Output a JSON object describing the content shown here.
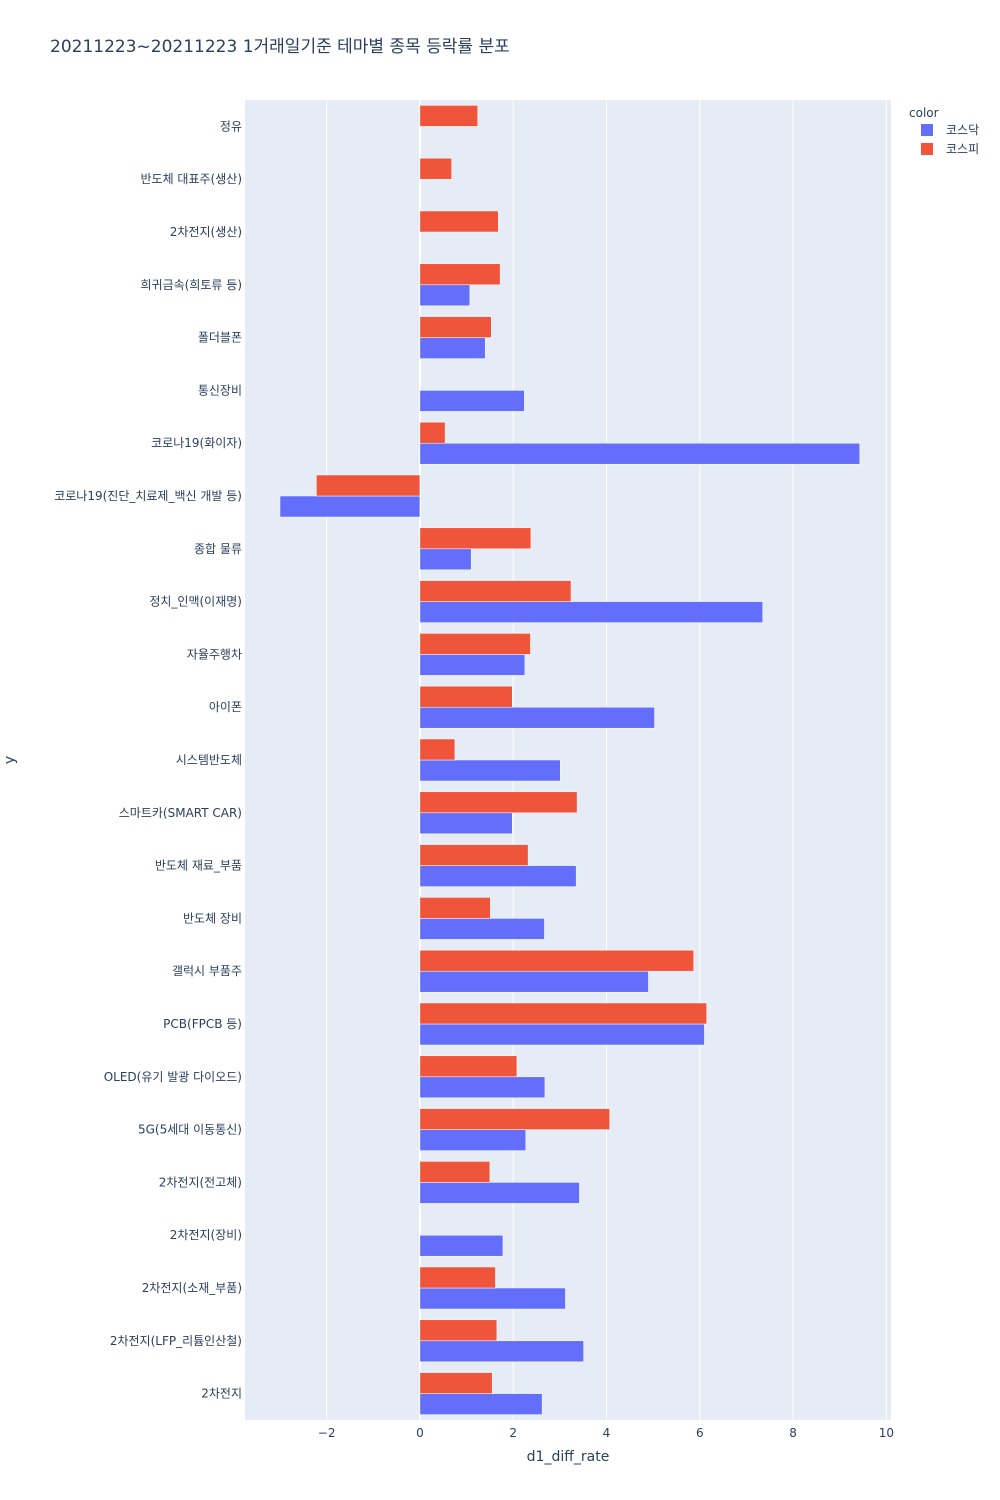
{
  "chart_data": {
    "type": "bar",
    "orientation": "horizontal",
    "barmode": "group",
    "title": "20211223~20211223 1거래일기준 테마별 종목 등락률 분포",
    "xlabel": "d1_diff_rate",
    "ylabel": "y",
    "xlim": [
      -3.75,
      10.1
    ],
    "xticks": [
      -2,
      0,
      2,
      4,
      6,
      8,
      10
    ],
    "xtick_labels": [
      "−2",
      "0",
      "2",
      "4",
      "6",
      "8",
      "10"
    ],
    "grid": true,
    "legend": {
      "title": "color",
      "placement": "top-right"
    },
    "categories": [
      "정유",
      "반도체 대표주(생산)",
      "2차전지(생산)",
      "희귀금속(희토류 등)",
      "폴더블폰",
      "통신장비",
      "코로나19(화이자)",
      "코로나19(진단_치료제_백신 개발 등)",
      "종합 물류",
      "정치_인맥(이재명)",
      "자율주행차",
      "아이폰",
      "시스템반도체",
      "스마트카(SMART CAR)",
      "반도체 재료_부품",
      "반도체 장비",
      "갤럭시 부품주",
      "PCB(FPCB 등)",
      "OLED(유기 발광 다이오드)",
      "5G(5세대 이동통신)",
      "2차전지(전고체)",
      "2차전지(장비)",
      "2차전지(소재_부품)",
      "2차전지(LFP_리튬인산철)",
      "2차전지"
    ],
    "series": [
      {
        "name": "코스닥",
        "color": "#636efa",
        "values": [
          null,
          null,
          null,
          1.07,
          1.4,
          2.24,
          9.43,
          -3.0,
          1.1,
          7.35,
          2.25,
          5.03,
          3.01,
          1.98,
          3.35,
          2.67,
          4.9,
          6.1,
          2.68,
          2.27,
          3.42,
          1.78,
          3.12,
          3.51,
          2.62
        ]
      },
      {
        "name": "코스피",
        "color": "#ef553b",
        "values": [
          1.24,
          0.68,
          1.68,
          1.72,
          1.53,
          null,
          0.54,
          -2.22,
          2.38,
          3.24,
          2.37,
          1.98,
          0.75,
          3.37,
          2.32,
          1.51,
          5.87,
          6.15,
          2.08,
          4.07,
          1.5,
          null,
          1.62,
          1.65,
          1.55
        ]
      }
    ]
  }
}
